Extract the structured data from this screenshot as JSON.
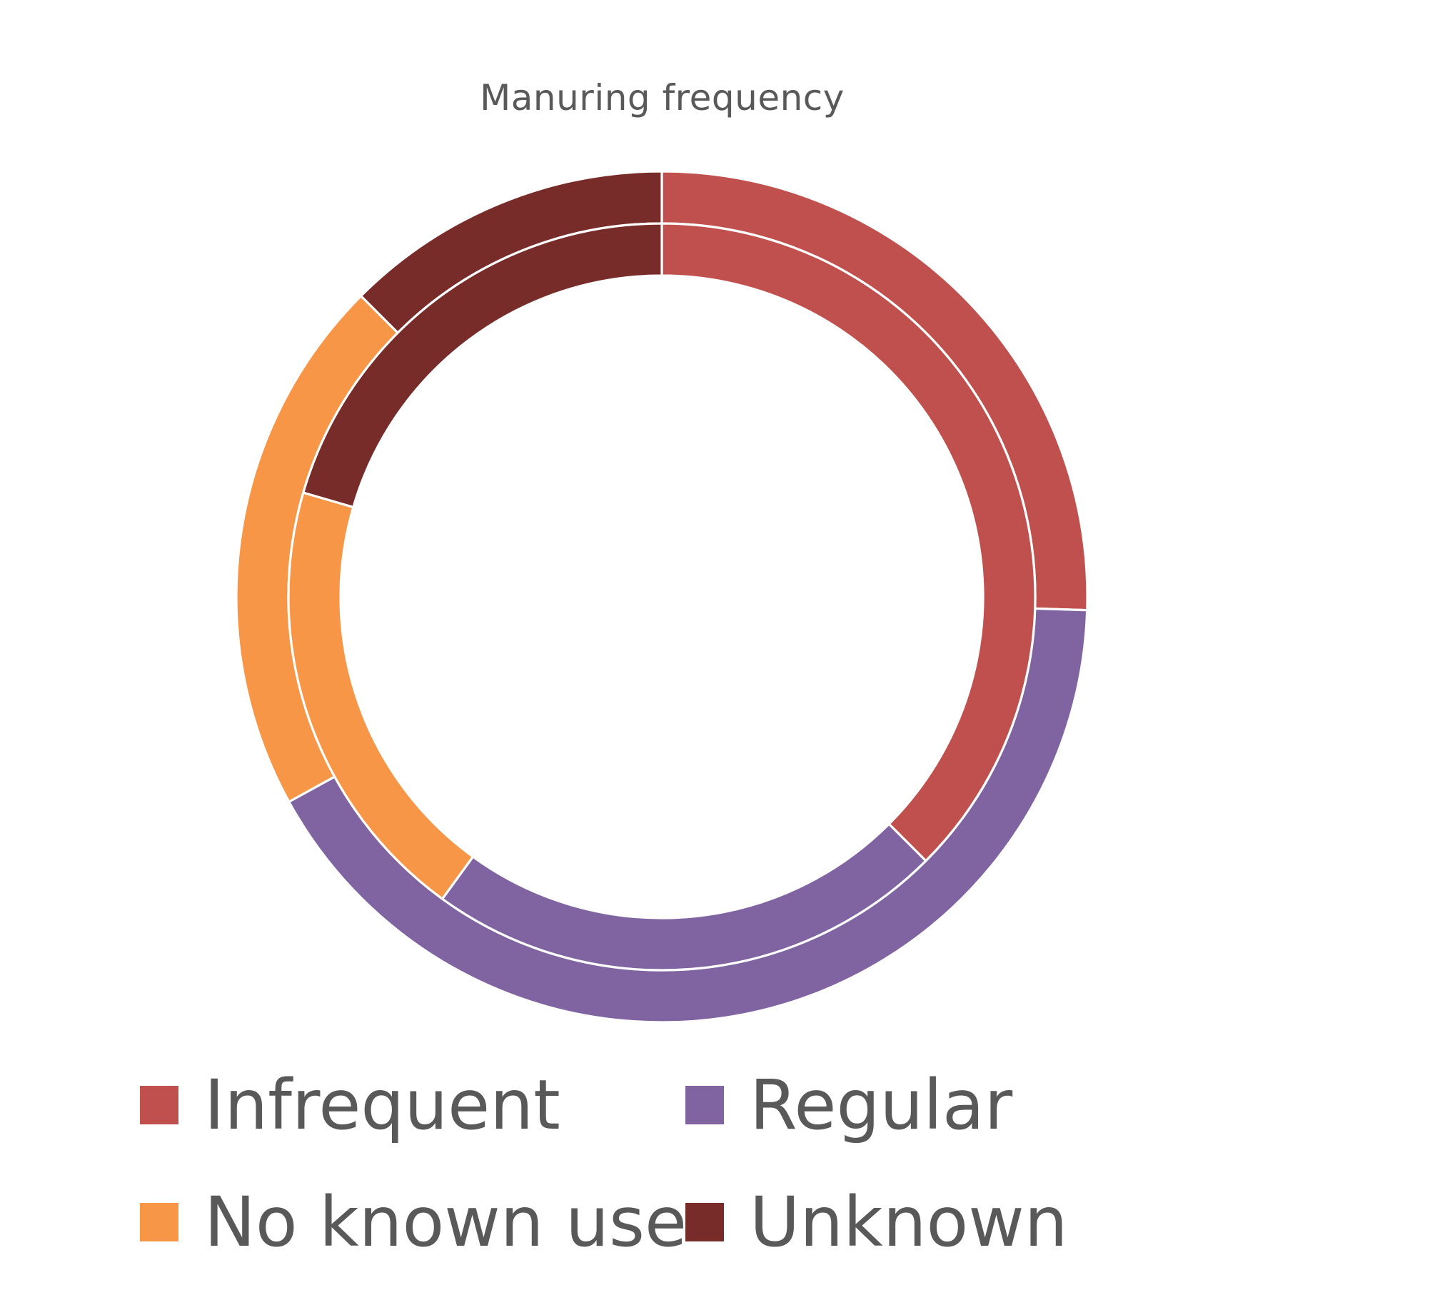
{
  "chart_data": {
    "type": "donut",
    "title": "Manuring frequency",
    "categories": [
      "Infrequent",
      "Regular",
      "No known use",
      "Unknown"
    ],
    "colors": {
      "Infrequent": "#C0504D",
      "Regular": "#8064A2",
      "No known use": "#F79646",
      "Unknown": "#772C2A"
    },
    "series": [
      {
        "ring": "outer",
        "values": [
          25.5,
          41.5,
          20.5,
          12.5
        ]
      },
      {
        "ring": "inner",
        "values": [
          37.5,
          22.5,
          19.5,
          20.5
        ]
      }
    ],
    "units": "percent",
    "legend": "bottom"
  },
  "legend": {
    "items": [
      {
        "label": "Infrequent",
        "color": "#C0504D"
      },
      {
        "label": "Regular",
        "color": "#8064A2"
      },
      {
        "label": "No known use",
        "color": "#F79646"
      },
      {
        "label": "Unknown",
        "color": "#772C2A"
      }
    ]
  }
}
